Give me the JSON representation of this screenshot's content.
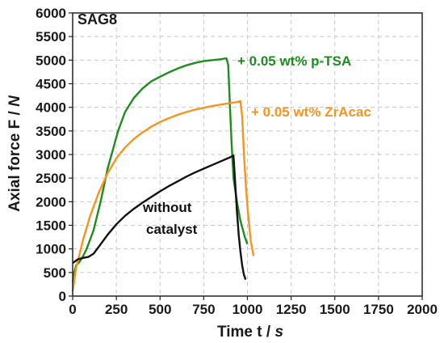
{
  "chart_data": {
    "type": "line",
    "panel_label": "SAG8",
    "xlabel": {
      "main": "Time t",
      "unit": "s"
    },
    "ylabel": {
      "main": "Axial force F",
      "unit": "N"
    },
    "xlim": [
      0,
      2000
    ],
    "ylim": [
      0,
      6000
    ],
    "xticks": [
      0,
      250,
      500,
      750,
      1000,
      1250,
      1500,
      1750,
      2000
    ],
    "yticks": [
      0,
      500,
      1000,
      1500,
      2000,
      2500,
      3000,
      3500,
      4000,
      4500,
      5000,
      5500,
      6000
    ],
    "grid": true,
    "series": [
      {
        "name": "+ 0.05 wt% p-TSA",
        "color": "#1e8c1e",
        "points": [
          [
            0,
            300
          ],
          [
            10,
            520
          ],
          [
            20,
            650
          ],
          [
            40,
            730
          ],
          [
            60,
            850
          ],
          [
            80,
            1000
          ],
          [
            100,
            1200
          ],
          [
            120,
            1400
          ],
          [
            140,
            1700
          ],
          [
            160,
            2000
          ],
          [
            180,
            2350
          ],
          [
            200,
            2700
          ],
          [
            230,
            3100
          ],
          [
            260,
            3500
          ],
          [
            300,
            3900
          ],
          [
            350,
            4200
          ],
          [
            400,
            4400
          ],
          [
            450,
            4550
          ],
          [
            500,
            4650
          ],
          [
            550,
            4740
          ],
          [
            600,
            4820
          ],
          [
            650,
            4890
          ],
          [
            700,
            4940
          ],
          [
            750,
            4980
          ],
          [
            800,
            5000
          ],
          [
            850,
            5020
          ],
          [
            880,
            5040
          ],
          [
            890,
            4900
          ],
          [
            900,
            4000
          ],
          [
            910,
            3200
          ],
          [
            920,
            2500
          ],
          [
            940,
            2000
          ],
          [
            960,
            1600
          ],
          [
            985,
            1250
          ],
          [
            1000,
            1100
          ]
        ]
      },
      {
        "name": "+ 0.05 wt% ZrAcac",
        "color": "#f7941d",
        "points": [
          [
            0,
            100
          ],
          [
            10,
            350
          ],
          [
            20,
            600
          ],
          [
            40,
            900
          ],
          [
            60,
            1200
          ],
          [
            100,
            1700
          ],
          [
            150,
            2200
          ],
          [
            200,
            2600
          ],
          [
            250,
            2920
          ],
          [
            300,
            3150
          ],
          [
            350,
            3330
          ],
          [
            400,
            3470
          ],
          [
            450,
            3590
          ],
          [
            500,
            3690
          ],
          [
            550,
            3770
          ],
          [
            600,
            3840
          ],
          [
            650,
            3900
          ],
          [
            700,
            3950
          ],
          [
            750,
            3990
          ],
          [
            800,
            4030
          ],
          [
            850,
            4060
          ],
          [
            900,
            4090
          ],
          [
            940,
            4110
          ],
          [
            960,
            4130
          ],
          [
            970,
            3800
          ],
          [
            980,
            3000
          ],
          [
            990,
            2400
          ],
          [
            1000,
            1900
          ],
          [
            1010,
            1500
          ],
          [
            1020,
            1150
          ],
          [
            1035,
            850
          ]
        ]
      },
      {
        "name": "without catalyst",
        "color": "#111111",
        "points": [
          [
            0,
            700
          ],
          [
            30,
            780
          ],
          [
            60,
            810
          ],
          [
            90,
            830
          ],
          [
            120,
            900
          ],
          [
            150,
            1050
          ],
          [
            200,
            1300
          ],
          [
            250,
            1520
          ],
          [
            300,
            1700
          ],
          [
            350,
            1850
          ],
          [
            400,
            1980
          ],
          [
            450,
            2100
          ],
          [
            500,
            2220
          ],
          [
            550,
            2330
          ],
          [
            600,
            2430
          ],
          [
            650,
            2530
          ],
          [
            700,
            2620
          ],
          [
            750,
            2700
          ],
          [
            800,
            2780
          ],
          [
            850,
            2860
          ],
          [
            900,
            2940
          ],
          [
            920,
            2980
          ],
          [
            930,
            2400
          ],
          [
            940,
            1800
          ],
          [
            950,
            1300
          ],
          [
            960,
            950
          ],
          [
            970,
            650
          ],
          [
            980,
            450
          ],
          [
            990,
            350
          ]
        ]
      }
    ],
    "annotations": [
      {
        "text": "+ 0.05 wt% p-TSA",
        "color": "#1e8c1e"
      },
      {
        "text": "+ 0.05 wt% ZrAcac",
        "color": "#f7941d"
      },
      {
        "text_line1": "without",
        "text_line2": "catalyst",
        "color": "#111111"
      }
    ]
  }
}
